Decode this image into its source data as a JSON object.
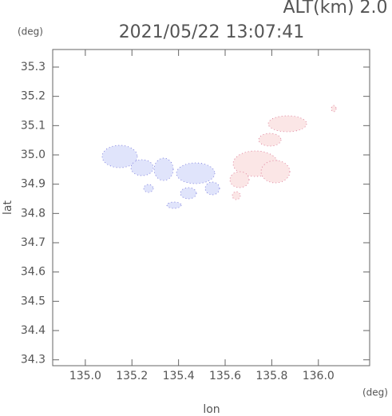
{
  "chart_data": {
    "type": "map",
    "title": "2021/05/22 13:07:41",
    "subtitle": "ALT(km) 2.0",
    "x_label": "lon",
    "y_label": "lat",
    "x_unit": "(deg)",
    "y_unit": "(deg)",
    "xlim": [
      134.86,
      136.22
    ],
    "ylim": [
      34.28,
      35.36
    ],
    "xticks": [
      {
        "value": 135.0,
        "label": "135.0"
      },
      135.2,
      135.4,
      135.6,
      135.8,
      {
        "value": 136.0,
        "label": "136.0"
      }
    ],
    "yticks": [
      34.3,
      34.4,
      34.5,
      34.6,
      34.7,
      34.8,
      34.9,
      {
        "value": 35.0,
        "label": "35.0"
      },
      35.1,
      35.2,
      35.3
    ]
  }
}
